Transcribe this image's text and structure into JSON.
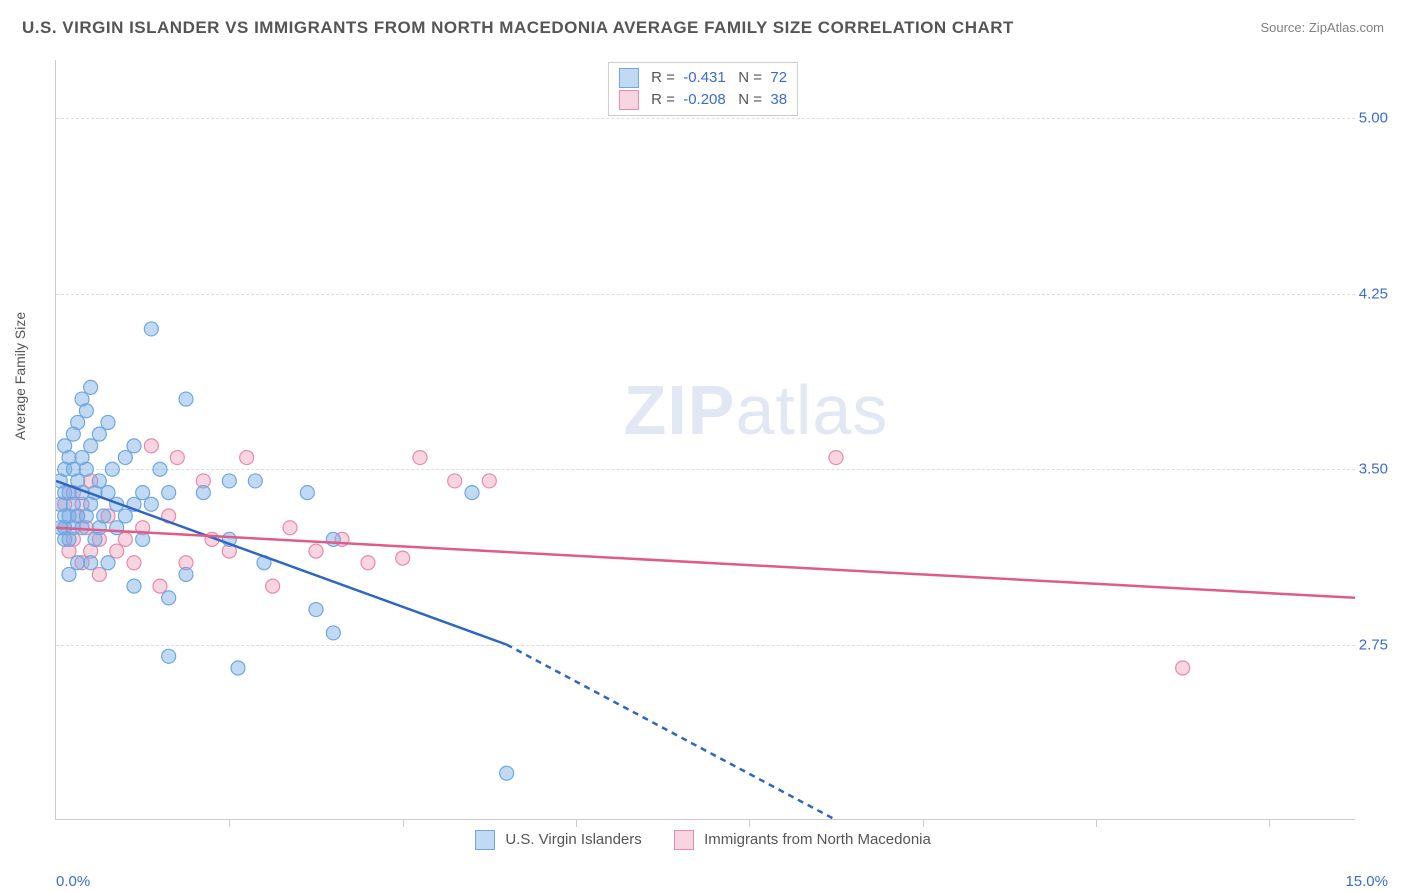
{
  "title": "U.S. VIRGIN ISLANDER VS IMMIGRANTS FROM NORTH MACEDONIA AVERAGE FAMILY SIZE CORRELATION CHART",
  "source": "Source: ZipAtlas.com",
  "watermark_zip": "ZIP",
  "watermark_atlas": "atlas",
  "chart": {
    "type": "scatter",
    "background_color": "#ffffff",
    "grid_color": "#dddddd",
    "axis_color": "#cccccc",
    "ylabel": "Average Family Size",
    "label_fontsize": 14,
    "label_color": "#555555",
    "tick_label_color": "#3b6bd6",
    "tick_label_fontsize": 15,
    "xlim": [
      0.0,
      15.0
    ],
    "ylim": [
      2.0,
      5.25
    ],
    "x_ticks_labeled": [
      {
        "v": 0.0,
        "label": "0.0%"
      },
      {
        "v": 15.0,
        "label": "15.0%"
      }
    ],
    "x_tick_positions": [
      2.0,
      4.0,
      6.0,
      8.0,
      10.0,
      12.0,
      14.0
    ],
    "y_ticks": [
      {
        "v": 5.0,
        "label": "5.00"
      },
      {
        "v": 4.25,
        "label": "4.25"
      },
      {
        "v": 3.5,
        "label": "3.50"
      },
      {
        "v": 2.75,
        "label": "2.75"
      }
    ],
    "marker_radius": 7,
    "marker_stroke_width": 1.2,
    "line_width": 2.5,
    "series_a": {
      "name": "U.S. Virgin Islanders",
      "fill": "rgba(120,170,230,0.45)",
      "stroke": "#6fa8e0",
      "line_color": "#2f66c4",
      "R_label": "R =",
      "R": "-0.431",
      "N_label": "N =",
      "N": "72",
      "trend": {
        "x1": 0.0,
        "y1": 3.45,
        "x2": 5.2,
        "y2": 2.75,
        "x2_ext": 9.0,
        "y2_ext": 2.0
      },
      "points": [
        [
          0.05,
          3.45
        ],
        [
          0.05,
          3.35
        ],
        [
          0.1,
          3.3
        ],
        [
          0.1,
          3.5
        ],
        [
          0.1,
          3.6
        ],
        [
          0.1,
          3.25
        ],
        [
          0.1,
          3.2
        ],
        [
          0.15,
          3.55
        ],
        [
          0.15,
          3.4
        ],
        [
          0.15,
          3.3
        ],
        [
          0.15,
          3.2
        ],
        [
          0.2,
          3.65
        ],
        [
          0.2,
          3.5
        ],
        [
          0.2,
          3.35
        ],
        [
          0.2,
          3.25
        ],
        [
          0.25,
          3.7
        ],
        [
          0.25,
          3.45
        ],
        [
          0.25,
          3.3
        ],
        [
          0.3,
          3.8
        ],
        [
          0.3,
          3.55
        ],
        [
          0.3,
          3.4
        ],
        [
          0.3,
          3.25
        ],
        [
          0.35,
          3.75
        ],
        [
          0.35,
          3.5
        ],
        [
          0.35,
          3.3
        ],
        [
          0.4,
          3.85
        ],
        [
          0.4,
          3.6
        ],
        [
          0.4,
          3.35
        ],
        [
          0.45,
          3.4
        ],
        [
          0.45,
          3.2
        ],
        [
          0.5,
          3.65
        ],
        [
          0.5,
          3.45
        ],
        [
          0.5,
          3.25
        ],
        [
          0.55,
          3.3
        ],
        [
          0.6,
          3.7
        ],
        [
          0.6,
          3.4
        ],
        [
          0.65,
          3.5
        ],
        [
          0.7,
          3.35
        ],
        [
          0.7,
          3.25
        ],
        [
          0.8,
          3.55
        ],
        [
          0.8,
          3.3
        ],
        [
          0.9,
          3.6
        ],
        [
          0.9,
          3.35
        ],
        [
          1.0,
          3.4
        ],
        [
          1.0,
          3.2
        ],
        [
          1.1,
          4.1
        ],
        [
          1.1,
          3.35
        ],
        [
          1.2,
          3.5
        ],
        [
          1.3,
          3.4
        ],
        [
          1.3,
          2.95
        ],
        [
          1.3,
          2.7
        ],
        [
          1.5,
          3.8
        ],
        [
          1.5,
          3.05
        ],
        [
          1.7,
          3.4
        ],
        [
          2.0,
          3.45
        ],
        [
          2.0,
          3.2
        ],
        [
          2.1,
          2.65
        ],
        [
          2.3,
          3.45
        ],
        [
          2.4,
          3.1
        ],
        [
          2.9,
          3.4
        ],
        [
          3.0,
          2.9
        ],
        [
          3.2,
          2.8
        ],
        [
          3.2,
          3.2
        ],
        [
          4.8,
          3.4
        ],
        [
          5.2,
          2.2
        ],
        [
          0.25,
          3.1
        ],
        [
          0.15,
          3.05
        ],
        [
          0.4,
          3.1
        ],
        [
          0.6,
          3.1
        ],
        [
          0.9,
          3.0
        ],
        [
          0.1,
          3.4
        ],
        [
          0.05,
          3.25
        ]
      ]
    },
    "series_b": {
      "name": "Immigrants from North Macedonia",
      "fill": "rgba(240,150,180,0.40)",
      "stroke": "#e88aa8",
      "line_color": "#e05a8a",
      "R_label": "R =",
      "R": "-0.208",
      "N_label": "N =",
      "N": "38",
      "trend": {
        "x1": 0.0,
        "y1": 3.25,
        "x2": 15.0,
        "y2": 2.95
      },
      "points": [
        [
          0.1,
          3.25
        ],
        [
          0.1,
          3.35
        ],
        [
          0.15,
          3.15
        ],
        [
          0.2,
          3.4
        ],
        [
          0.2,
          3.2
        ],
        [
          0.25,
          3.3
        ],
        [
          0.3,
          3.1
        ],
        [
          0.3,
          3.35
        ],
        [
          0.35,
          3.25
        ],
        [
          0.4,
          3.45
        ],
        [
          0.4,
          3.15
        ],
        [
          0.5,
          3.2
        ],
        [
          0.5,
          3.05
        ],
        [
          0.6,
          3.3
        ],
        [
          0.7,
          3.15
        ],
        [
          0.8,
          3.2
        ],
        [
          0.9,
          3.1
        ],
        [
          1.0,
          3.25
        ],
        [
          1.1,
          3.6
        ],
        [
          1.2,
          3.0
        ],
        [
          1.3,
          3.3
        ],
        [
          1.4,
          3.55
        ],
        [
          1.5,
          3.1
        ],
        [
          1.7,
          3.45
        ],
        [
          1.8,
          3.2
        ],
        [
          2.0,
          3.15
        ],
        [
          2.2,
          3.55
        ],
        [
          2.5,
          3.0
        ],
        [
          2.7,
          3.25
        ],
        [
          3.0,
          3.15
        ],
        [
          3.3,
          3.2
        ],
        [
          3.6,
          3.1
        ],
        [
          4.0,
          3.12
        ],
        [
          4.2,
          3.55
        ],
        [
          4.6,
          3.45
        ],
        [
          5.0,
          3.45
        ],
        [
          9.0,
          3.55
        ],
        [
          13.0,
          2.65
        ]
      ]
    }
  },
  "legend_bottom": {
    "a_label": "U.S. Virgin Islanders",
    "b_label": "Immigrants from North Macedonia"
  }
}
